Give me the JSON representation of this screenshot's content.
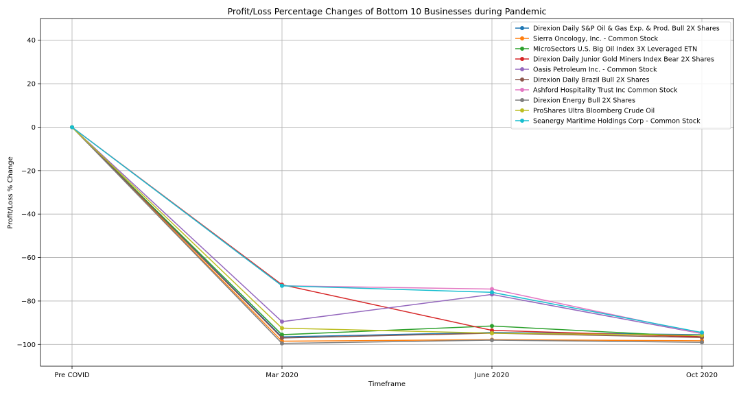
{
  "chart_data": {
    "type": "line",
    "title": "Profit/Loss Percentage Changes of Bottom 10 Businesses during Pandemic",
    "xlabel": "Timeframe",
    "ylabel": "Profit/Loss % Change",
    "categories": [
      "Pre COVID",
      "Mar 2020",
      "June 2020",
      "Oct 2020"
    ],
    "ylim": [
      -110,
      50
    ],
    "yticks": [
      -100,
      -80,
      -60,
      -40,
      -20,
      0,
      20,
      40
    ],
    "ytick_labels": [
      "−100",
      "−80",
      "−60",
      "−40",
      "−20",
      "0",
      "20",
      "40"
    ],
    "grid": true,
    "legend_position": "top-right",
    "series": [
      {
        "name": "Direxion Daily S&P Oil & Gas Exp. & Prod. Bull 2X Shares",
        "color": "#1f77b4",
        "values": [
          0,
          -96.5,
          -94.5,
          -95.5
        ]
      },
      {
        "name": "Sierra Oncology, Inc. - Common Stock",
        "color": "#ff7f0e",
        "values": [
          0,
          -98.5,
          -97.8,
          -98.3
        ]
      },
      {
        "name": "MicroSectors U.S. Big Oil Index 3X Leveraged ETN",
        "color": "#2ca02c",
        "values": [
          0,
          -95.5,
          -91.5,
          -96.5
        ]
      },
      {
        "name": "Direxion Daily Junior Gold Miners Index Bear 2X Shares",
        "color": "#d62728",
        "values": [
          0,
          -72.5,
          -93.5,
          -96.5
        ]
      },
      {
        "name": "Oasis Petroleum Inc. - Common Stock",
        "color": "#9467bd",
        "values": [
          0,
          -89.5,
          -77.0,
          -95.0
        ]
      },
      {
        "name": "Direxion Daily Brazil Bull 2X Shares",
        "color": "#8c564b",
        "values": [
          0,
          -97.0,
          -94.8,
          -96.8
        ]
      },
      {
        "name": "Ashford Hospitality Trust Inc Common Stock",
        "color": "#e377c2",
        "values": [
          0,
          -73.0,
          -74.5,
          -95.0
        ]
      },
      {
        "name": "Direxion Energy Bull 2X Shares",
        "color": "#7f7f7f",
        "values": [
          0,
          -99.5,
          -98.0,
          -99.0
        ]
      },
      {
        "name": "ProShares Ultra Bloomberg Crude Oil",
        "color": "#bcbd22",
        "values": [
          0,
          -92.5,
          -94.8,
          -95.8
        ]
      },
      {
        "name": "Seanergy Maritime Holdings Corp - Common Stock",
        "color": "#17becf",
        "values": [
          0,
          -73.0,
          -76.0,
          -94.5
        ]
      }
    ]
  }
}
